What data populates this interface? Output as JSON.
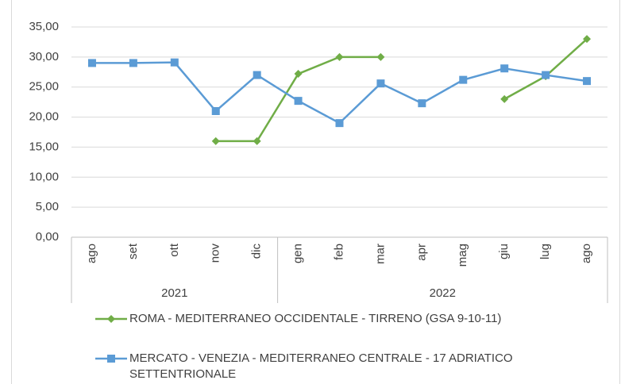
{
  "chart_data": {
    "type": "line",
    "categories": [
      "ago",
      "set",
      "ott",
      "nov",
      "dic",
      "gen",
      "feb",
      "mar",
      "apr",
      "mag",
      "giu",
      "lug",
      "ago"
    ],
    "groups": [
      {
        "label": "2021",
        "count": 5
      },
      {
        "label": "2022",
        "count": 8
      }
    ],
    "series": [
      {
        "name": "ROMA - MEDITERRANEO OCCIDENTALE - TIRRENO (GSA 9-10-11)",
        "color": "#70ad47",
        "marker": "diamond",
        "values": [
          null,
          null,
          null,
          16,
          16,
          27.2,
          30,
          30,
          null,
          null,
          23,
          26.8,
          33
        ]
      },
      {
        "name": "MERCATO - VENEZIA - MEDITERRANEO CENTRALE - 17 ADRIATICO SETTENTRIONALE",
        "color": "#5b9bd5",
        "marker": "square",
        "values": [
          29,
          29,
          29.1,
          21,
          27,
          22.7,
          19,
          25.6,
          22.3,
          26.2,
          28.1,
          27,
          26
        ]
      }
    ],
    "ylim": [
      0,
      35
    ],
    "yticks": [
      {
        "value": 0,
        "label": "0,00"
      },
      {
        "value": 5,
        "label": "5,00"
      },
      {
        "value": 10,
        "label": "10,00"
      },
      {
        "value": 15,
        "label": "15,00"
      },
      {
        "value": 20,
        "label": "20,00"
      },
      {
        "value": 25,
        "label": "25,00"
      },
      {
        "value": 30,
        "label": "30,00"
      },
      {
        "value": 35,
        "label": "35,00"
      }
    ],
    "grid": true
  }
}
